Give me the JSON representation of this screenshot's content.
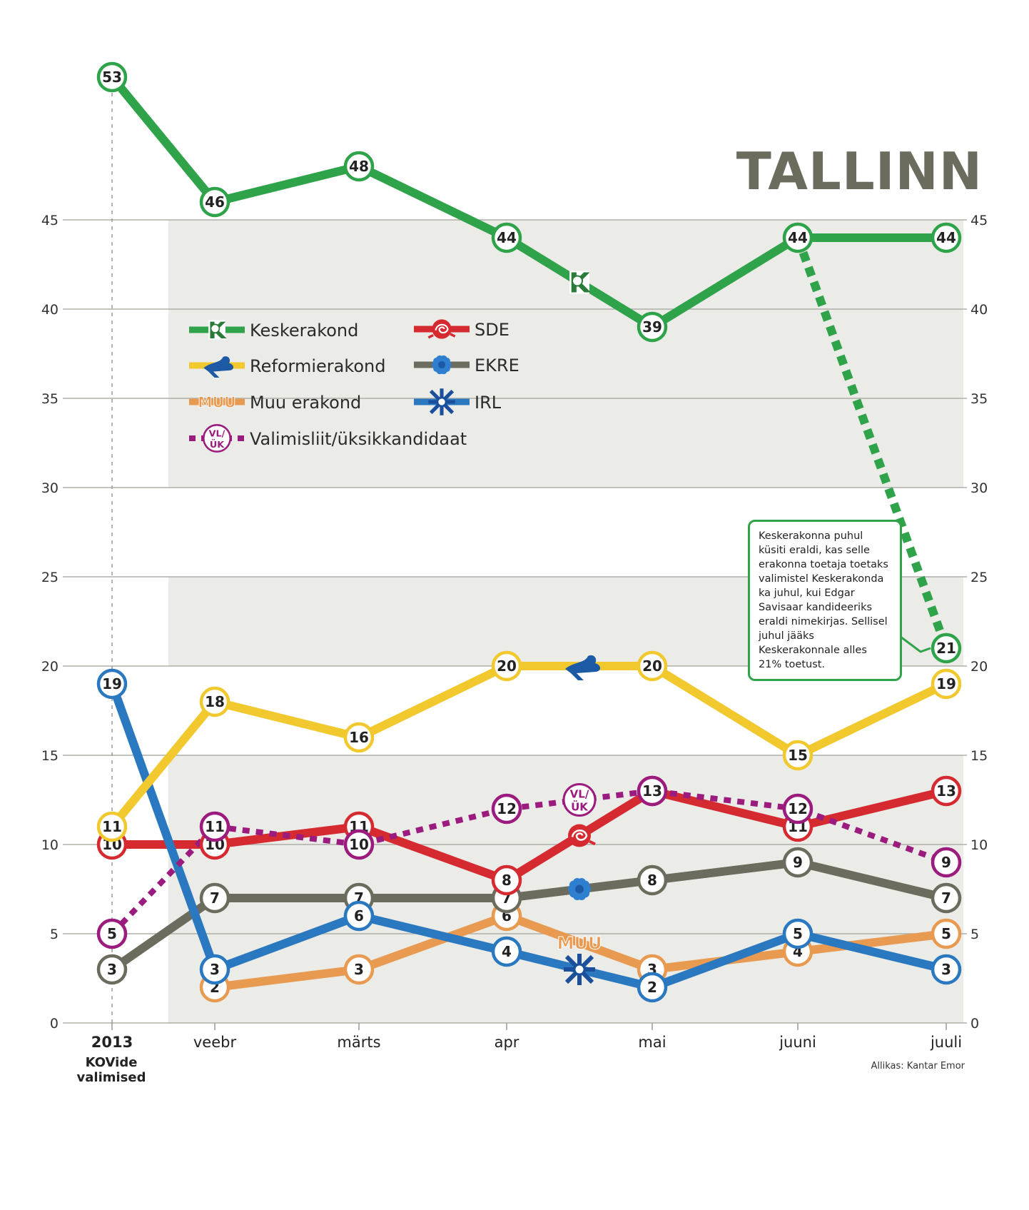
{
  "title": "TALLINN",
  "source": "Allikas: Kantar Emor",
  "note": "Keskerakonna puhul küsiti eraldi, kas selle erakonna toetaja toetaks valimistel Keskerakonda ka juhul, kui Edgar Savisaar kandideeriks eraldi nimekirjas. Sellisel juhul jääks Keskerakonnale alles 21% toetust.",
  "chart_data": {
    "type": "line",
    "categories": [
      "2013",
      "veebr",
      "märts",
      "apr",
      "mai",
      "juuni",
      "juuli"
    ],
    "first_category_sub": "KOVide valimised",
    "ylim": [
      0,
      55
    ],
    "yticks": [
      0,
      5,
      10,
      15,
      20,
      25,
      30,
      35,
      40,
      45
    ],
    "grid": true,
    "series": [
      {
        "name": "Keskerakond",
        "color": "#2fa34a",
        "values": [
          53,
          46,
          48,
          44,
          39,
          44,
          44
        ]
      },
      {
        "name": "Reformierakond",
        "color": "#f1c92e",
        "values": [
          11,
          18,
          16,
          20,
          20,
          15,
          19
        ]
      },
      {
        "name": "SDE",
        "color": "#d62a31",
        "values": [
          10,
          10,
          11,
          8,
          13,
          11,
          13
        ]
      },
      {
        "name": "EKRE",
        "color": "#6b6b5e",
        "values": [
          3,
          7,
          7,
          7,
          8,
          9,
          7
        ]
      },
      {
        "name": "Muu erakond",
        "color": "#e89a50",
        "values": [
          null,
          2,
          3,
          6,
          3,
          4,
          5
        ]
      },
      {
        "name": "IRL",
        "color": "#2a78c0",
        "values": [
          19,
          3,
          6,
          4,
          2,
          5,
          3
        ]
      },
      {
        "name": "Valimisliit/üksikkandidaat",
        "color": "#9b1b7e",
        "values": [
          5,
          11,
          10,
          12,
          13,
          12,
          9
        ]
      }
    ],
    "annotation": {
      "series": "Keskerakond",
      "from_category": "juuni",
      "from_value": 44,
      "to_category": "juuli",
      "value": 21
    },
    "legend_icons": {
      "Keskerakond": "k-logo-icon",
      "Reformierakond": "squirrel-icon",
      "SDE": "rose-icon",
      "EKRE": "cornflower-icon",
      "Muu erakond": "muu-text-icon",
      "IRL": "cross-star-icon",
      "Valimisliit/üksikkandidaat": "vl-uk-icon"
    },
    "icon_texts": {
      "muu": "MUU",
      "vl": "VL/",
      "uk": "ÜK",
      "k": "K"
    }
  }
}
